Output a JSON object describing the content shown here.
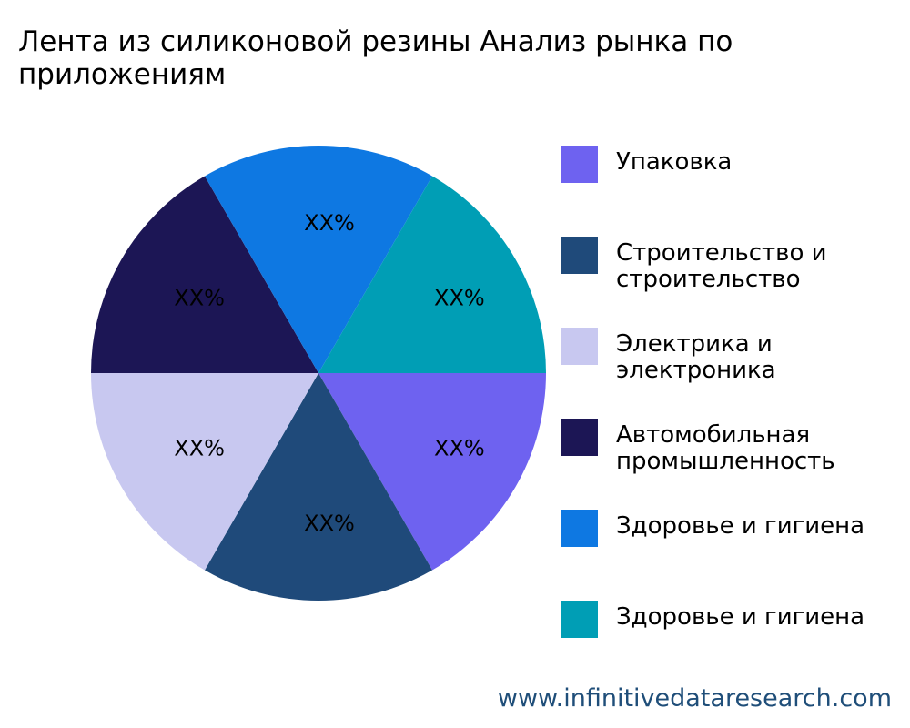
{
  "title": "Лента из силиконовой резины Анализ рынка по приложениям",
  "chart_data": {
    "type": "pie",
    "title": "Лента из силиконовой резины Анализ рынка по приложениям",
    "categories": [
      "Упаковка",
      "Строительство и строительство",
      "Электрика и электроника",
      "Автомобильная промышленность",
      "Здоровье и гигиена",
      "Здоровье и гигиена"
    ],
    "values": [
      16.67,
      16.67,
      16.67,
      16.67,
      16.67,
      16.67
    ],
    "data_labels": [
      "XX%",
      "XX%",
      "XX%",
      "XX%",
      "XX%",
      "XX%"
    ],
    "colors": [
      "#6e62f0",
      "#1f4a7a",
      "#c8c8f0",
      "#1c1655",
      "#0e78e2",
      "#009eb5"
    ],
    "start_angle": "3 o'clock, clockwise",
    "legend_position": "right"
  },
  "legend": {
    "items": [
      {
        "label": "Упаковка",
        "color": "#6e62f0"
      },
      {
        "label": "Строительство и строительство",
        "color": "#1f4a7a"
      },
      {
        "label": "Электрика и электроника",
        "color": "#c8c8f0"
      },
      {
        "label": "Автомобильная промышленность",
        "color": "#1c1655"
      },
      {
        "label": "Здоровье и гигиена",
        "color": "#0e78e2"
      },
      {
        "label": "Здоровье и гигиена",
        "color": "#009eb5"
      }
    ]
  },
  "footer": {
    "website": "www.infinitivedataresearch.com",
    "color": "#1f4e79"
  }
}
